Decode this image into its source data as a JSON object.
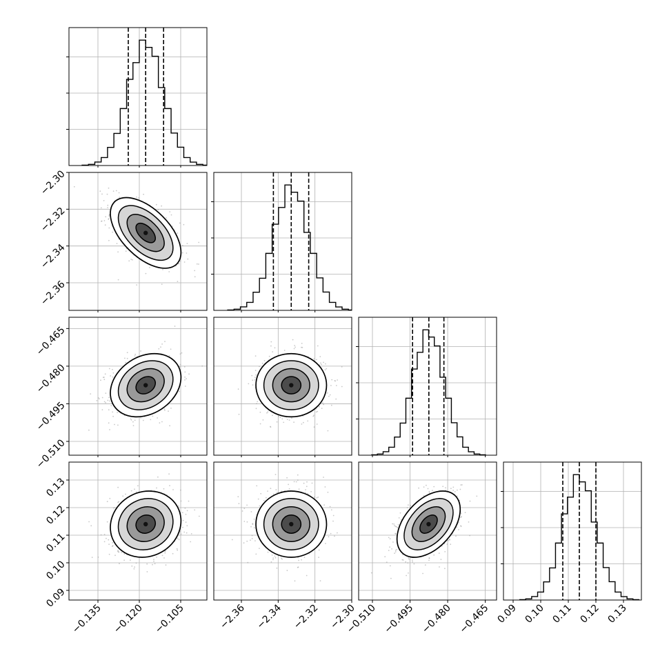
{
  "chart_data": {
    "type": "corner",
    "title": "",
    "n_params": 4,
    "params": [
      {
        "label": "",
        "range": [
          -0.1455,
          -0.0955
        ],
        "ticks": [
          -0.135,
          -0.12,
          -0.105
        ],
        "tick_labels": [
          "−0.135",
          "−0.120",
          "−0.105"
        ],
        "quantiles": [
          -0.124,
          -0.1177,
          -0.1112
        ],
        "mean": -0.1177,
        "sigma": 0.0064
      },
      {
        "label": "",
        "range": [
          -2.375,
          -2.3
        ],
        "ticks": [
          -2.36,
          -2.34,
          -2.32,
          -2.3
        ],
        "tick_labels": [
          "−2.36",
          "−2.34",
          "−2.32",
          "−2.30"
        ],
        "quantiles": [
          -2.3426,
          -2.3329,
          -2.3234
        ],
        "mean": -2.3329,
        "sigma": 0.0096
      },
      {
        "label": "",
        "range": [
          -0.5155,
          -0.4605
        ],
        "ticks": [
          -0.51,
          -0.495,
          -0.48,
          -0.465
        ],
        "tick_labels": [
          "−0.510",
          "−0.495",
          "−0.480",
          "−0.465"
        ],
        "quantiles": [
          -0.494,
          -0.4875,
          -0.4815
        ],
        "mean": -0.4876,
        "sigma": 0.0063
      },
      {
        "label": "",
        "range": [
          0.0865,
          0.1365
        ],
        "ticks": [
          0.09,
          0.1,
          0.11,
          0.12,
          0.13
        ],
        "tick_labels": [
          "0.09",
          "0.10",
          "0.11",
          "0.12",
          "0.13"
        ],
        "quantiles": [
          0.108,
          0.114,
          0.12
        ],
        "mean": 0.114,
        "sigma": 0.006
      }
    ],
    "correlations": [
      {
        "pair": [
          0,
          1
        ],
        "rho": -0.55
      },
      {
        "pair": [
          0,
          2
        ],
        "rho": 0.25
      },
      {
        "pair": [
          1,
          2
        ],
        "rho": 0.0
      },
      {
        "pair": [
          0,
          3
        ],
        "rho": 0.1
      },
      {
        "pair": [
          1,
          3
        ],
        "rho": 0.0
      },
      {
        "pair": [
          2,
          3
        ],
        "rho": 0.45
      }
    ],
    "grid": true,
    "histogram_bins": 20,
    "contour_levels": 4,
    "colors": {
      "line": "#000000",
      "grid": "#b0b0b0",
      "points": "#9a9a9a"
    }
  }
}
